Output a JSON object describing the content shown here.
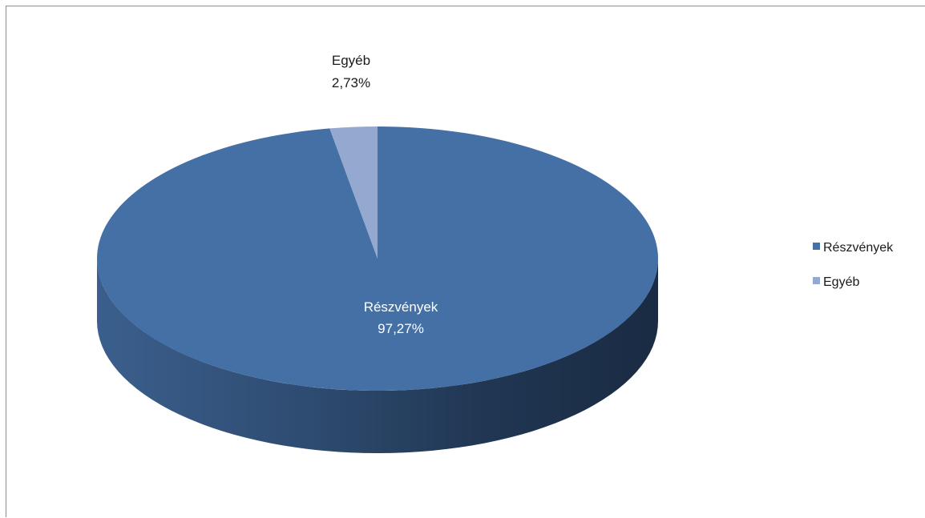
{
  "chart_data": {
    "type": "pie",
    "style": "3d",
    "title": "",
    "slices": [
      {
        "label": "Részvények",
        "value": 97.27,
        "value_text": "97,27%",
        "color": "#4470a6"
      },
      {
        "label": "Egyéb",
        "value": 2.73,
        "value_text": "2,73%",
        "color": "#95a9d0"
      }
    ],
    "legend": {
      "position": "right",
      "items": [
        "Részvények",
        "Egyéb"
      ]
    }
  }
}
